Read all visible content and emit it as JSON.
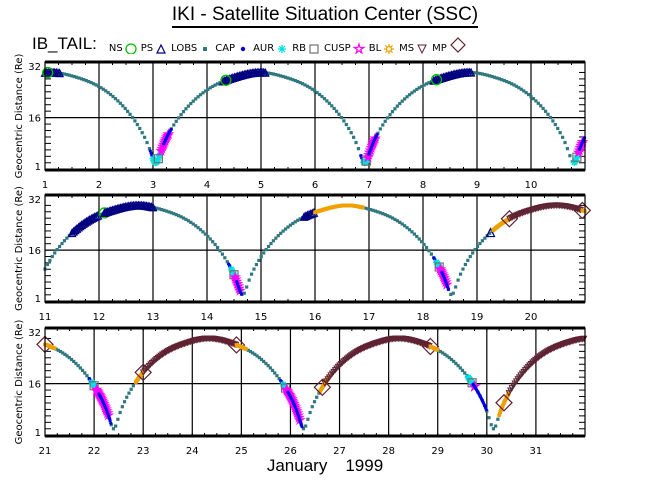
{
  "title": "IKI - Satellite Situation Center (SSC)",
  "satellite": "IB_TAIL:",
  "legend": [
    {
      "label": "NS",
      "symbol": "none",
      "color": "#000000"
    },
    {
      "label": "PS",
      "symbol": "circle",
      "color": "#00c000"
    },
    {
      "label": "LOBS",
      "symbol": "triangle-up",
      "color": "#000080"
    },
    {
      "label": "CAP",
      "symbol": "small-square",
      "color": "#307880"
    },
    {
      "label": "AUR",
      "symbol": "dot",
      "color": "#0000e0"
    },
    {
      "label": "RB",
      "symbol": "asterisk",
      "color": "#00e0e0"
    },
    {
      "label": "CUSP",
      "symbol": "square-open",
      "color": "#707070"
    },
    {
      "label": "BL",
      "symbol": "star",
      "color": "#ff00ff"
    },
    {
      "label": "MS",
      "symbol": "sun",
      "color": "#f0a000"
    },
    {
      "label": "MP",
      "symbol": "triangle-down",
      "color": "#602030"
    },
    {
      "label": "",
      "symbol": "diamond",
      "color": "#602030"
    }
  ],
  "xlabel_month": "January",
  "xlabel_year": "1999",
  "chart_data": {
    "type": "scatter",
    "title": "IKI - Satellite Situation Center (SSC)",
    "ylabel": "Geocentric Distance (Re)",
    "xlabel": "January 1999",
    "yticks": [
      "1",
      "16",
      "32"
    ],
    "ylim": [
      1,
      32
    ],
    "grid": true,
    "orbit": {
      "apogee_re": 30,
      "perigee_re": 2,
      "period_days": 3.87,
      "first_perigee_day": 3.05
    },
    "panels": [
      {
        "xlim": [
          1,
          11
        ],
        "xticks": [
          "1",
          "2",
          "3",
          "4",
          "5",
          "6",
          "7",
          "8",
          "9",
          "10"
        ],
        "segments": [
          {
            "region": "LOBS",
            "from": 1.0,
            "to": 1.3
          },
          {
            "region": "PS",
            "at": 1.05
          },
          {
            "region": "LOBS",
            "from": 4.3,
            "to": 5.1
          },
          {
            "region": "PS",
            "at": 4.35
          },
          {
            "region": "LOBS",
            "from": 8.2,
            "to": 8.9
          },
          {
            "region": "PS",
            "at": 8.25
          },
          {
            "region": "AUR",
            "from": 2.95,
            "to": 3.05
          },
          {
            "region": "RB",
            "from": 3.0,
            "to": 3.15
          },
          {
            "region": "CUSP",
            "at": 3.1
          },
          {
            "region": "BL",
            "from": 3.15,
            "to": 3.3
          },
          {
            "region": "AUR",
            "from": 3.2,
            "to": 3.35
          },
          {
            "region": "AUR",
            "from": 6.85,
            "to": 6.92
          },
          {
            "region": "RB",
            "from": 6.9,
            "to": 7.0
          },
          {
            "region": "CUSP",
            "at": 6.95
          },
          {
            "region": "BL",
            "from": 6.98,
            "to": 7.12
          },
          {
            "region": "AUR",
            "from": 7.0,
            "to": 7.15
          },
          {
            "region": "RB",
            "from": 10.8,
            "to": 10.9
          },
          {
            "region": "CUSP",
            "at": 10.85
          },
          {
            "region": "BL",
            "from": 10.88,
            "to": 10.97
          },
          {
            "region": "AUR",
            "from": 10.9,
            "to": 11.0
          }
        ]
      },
      {
        "xlim": [
          11,
          21
        ],
        "xticks": [
          "11",
          "12",
          "13",
          "14",
          "15",
          "16",
          "17",
          "18",
          "19",
          "20"
        ],
        "segments": [
          {
            "region": "LOBS",
            "from": 11.5,
            "to": 12.0
          },
          {
            "region": "PS",
            "at": 12.1
          },
          {
            "region": "LOBS",
            "from": 12.1,
            "to": 13.0
          },
          {
            "region": "AUR",
            "from": 14.4,
            "to": 14.48
          },
          {
            "region": "RB",
            "from": 14.45,
            "to": 14.55
          },
          {
            "region": "CUSP",
            "at": 14.5
          },
          {
            "region": "BL",
            "from": 14.52,
            "to": 14.62
          },
          {
            "region": "AUR",
            "from": 14.55,
            "to": 14.65
          },
          {
            "region": "LOBS",
            "from": 15.8,
            "to": 16.0
          },
          {
            "region": "MS",
            "from": 16.0,
            "to": 16.9
          },
          {
            "region": "AUR",
            "from": 18.2,
            "to": 18.28
          },
          {
            "region": "RB",
            "from": 18.25,
            "to": 18.35
          },
          {
            "region": "CUSP",
            "at": 18.3
          },
          {
            "region": "BL",
            "from": 18.32,
            "to": 18.45
          },
          {
            "region": "AUR",
            "from": 18.35,
            "to": 18.48
          },
          {
            "region": "LOBS",
            "at": 19.25
          },
          {
            "region": "MS",
            "from": 19.3,
            "to": 19.6
          },
          {
            "region": "MP",
            "at": 19.6
          },
          {
            "region": "MS_DOWN",
            "from": 19.6,
            "to": 20.95
          },
          {
            "region": "MP",
            "at": 20.95
          },
          {
            "region": "MS",
            "from": 20.95,
            "to": 21.0
          }
        ]
      },
      {
        "xlim": [
          21,
          32
        ],
        "xticks": [
          "21",
          "22",
          "23",
          "24",
          "25",
          "26",
          "27",
          "28",
          "29",
          "30",
          "31"
        ],
        "segments": [
          {
            "region": "MP",
            "at": 21.0
          },
          {
            "region": "MS",
            "from": 21.0,
            "to": 21.2
          },
          {
            "region": "AUR",
            "from": 21.9,
            "to": 21.98
          },
          {
            "region": "RB",
            "from": 21.95,
            "to": 22.05
          },
          {
            "region": "CUSP",
            "at": 22.0
          },
          {
            "region": "BL",
            "from": 22.05,
            "to": 22.3
          },
          {
            "region": "AUR",
            "from": 22.1,
            "to": 22.35
          },
          {
            "region": "MS",
            "from": 22.85,
            "to": 23.0
          },
          {
            "region": "MP",
            "at": 23.0
          },
          {
            "region": "MS_DOWN",
            "from": 23.0,
            "to": 24.9
          },
          {
            "region": "MP",
            "at": 24.9
          },
          {
            "region": "MS",
            "from": 24.9,
            "to": 25.1
          },
          {
            "region": "AUR",
            "from": 25.8,
            "to": 25.88
          },
          {
            "region": "RB",
            "from": 25.85,
            "to": 25.95
          },
          {
            "region": "CUSP",
            "at": 25.9
          },
          {
            "region": "BL",
            "from": 25.92,
            "to": 26.2
          },
          {
            "region": "AUR",
            "from": 25.95,
            "to": 26.25
          },
          {
            "region": "MS",
            "from": 26.6,
            "to": 26.8
          },
          {
            "region": "MP",
            "at": 26.65
          },
          {
            "region": "MS_DOWN",
            "from": 26.7,
            "to": 28.85
          },
          {
            "region": "MP",
            "at": 28.85
          },
          {
            "region": "MS",
            "from": 28.85,
            "to": 29.0
          },
          {
            "region": "AUR",
            "from": 29.6,
            "to": 29.68
          },
          {
            "region": "RB",
            "from": 29.62,
            "to": 29.75
          },
          {
            "region": "CUSP",
            "at": 29.7
          },
          {
            "region": "BL",
            "at": 29.75
          },
          {
            "region": "AUR",
            "from": 29.72,
            "to": 30.0
          },
          {
            "region": "MS",
            "from": 30.25,
            "to": 30.45
          },
          {
            "region": "MP",
            "at": 30.35
          },
          {
            "region": "MS_DOWN",
            "from": 30.45,
            "to": 32.0
          }
        ]
      }
    ]
  }
}
